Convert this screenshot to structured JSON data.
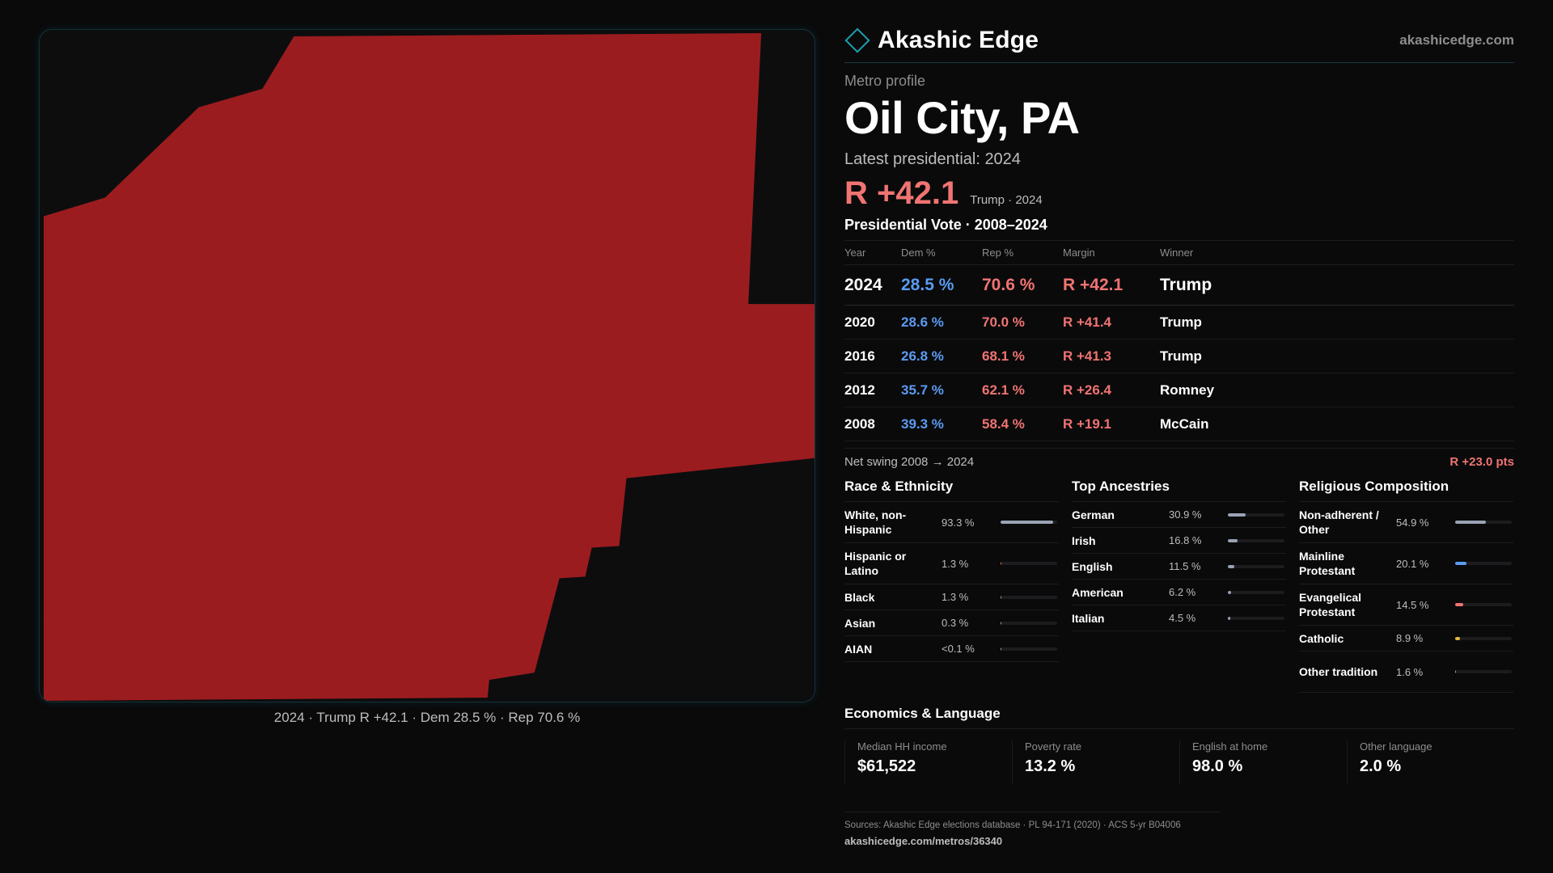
{
  "map": {
    "caption": "2024 · Trump R +42.1 · Dem 28.5 % · Rep 70.6 %",
    "fill_color": "#9b1c1f"
  },
  "brand": {
    "name": "Akashic Edge",
    "domain": "akashicedge.com",
    "logo_icon": "diamond-outline-icon",
    "accent": "#1f9fb0"
  },
  "metro": {
    "kicker": "Metro profile",
    "title": "Oil City, PA",
    "latest_label": "Latest presidential: 2024",
    "headline_margin": "R +42.1",
    "headline_sub": "Trump · 2024"
  },
  "vote": {
    "heading": "Presidential Vote · 2008–2024",
    "columns": [
      "Year",
      "Dem %",
      "Rep %",
      "Margin",
      "Winner"
    ],
    "rows": [
      {
        "year": "2024",
        "dem": "28.5 %",
        "rep": "70.6 %",
        "margin": "R +42.1",
        "winner": "Trump"
      },
      {
        "year": "2020",
        "dem": "28.6 %",
        "rep": "70.0 %",
        "margin": "R +41.4",
        "winner": "Trump"
      },
      {
        "year": "2016",
        "dem": "26.8 %",
        "rep": "68.1 %",
        "margin": "R +41.3",
        "winner": "Trump"
      },
      {
        "year": "2012",
        "dem": "35.7 %",
        "rep": "62.1 %",
        "margin": "R +26.4",
        "winner": "Romney"
      },
      {
        "year": "2008",
        "dem": "39.3 %",
        "rep": "58.4 %",
        "margin": "R +19.1",
        "winner": "McCain"
      }
    ],
    "dem_color": "#5b9bf0",
    "rep_color": "#f07472"
  },
  "swing": {
    "label": "Net swing 2008 → 2024",
    "value": "R +23.0 pts"
  },
  "breakdowns": [
    {
      "title": "Race & Ethnicity",
      "rows": [
        {
          "label": "White, non-Hispanic",
          "pct": "93.3 %",
          "value": 93.3,
          "color": "#9aa3b4"
        },
        {
          "label": "Hispanic or Latino",
          "pct": "1.3 %",
          "value": 1.3,
          "color": "#e0793a"
        },
        {
          "label": "Black",
          "pct": "1.3 %",
          "value": 1.3,
          "color": "#9aa3b4"
        },
        {
          "label": "Asian",
          "pct": "0.3 %",
          "value": 0.3,
          "color": "#9aa3b4"
        },
        {
          "label": "AIAN",
          "pct": "<0.1 %",
          "value": 0.05,
          "color": "#9aa3b4"
        }
      ]
    },
    {
      "title": "Top Ancestries",
      "rows": [
        {
          "label": "German",
          "pct": "30.9 %",
          "value": 30.9,
          "color": "#9aa3b4"
        },
        {
          "label": "Irish",
          "pct": "16.8 %",
          "value": 16.8,
          "color": "#9aa3b4"
        },
        {
          "label": "English",
          "pct": "11.5 %",
          "value": 11.5,
          "color": "#9aa3b4"
        },
        {
          "label": "American",
          "pct": "6.2 %",
          "value": 6.2,
          "color": "#9aa3b4"
        },
        {
          "label": "Italian",
          "pct": "4.5 %",
          "value": 4.5,
          "color": "#9aa3b4"
        }
      ]
    },
    {
      "title": "Religious Composition",
      "rows": [
        {
          "label": "Non-adherent / Other",
          "pct": "54.9 %",
          "value": 54.9,
          "color": "#9aa3b4"
        },
        {
          "label": "Mainline Protestant",
          "pct": "20.1 %",
          "value": 20.1,
          "color": "#5b9bf0"
        },
        {
          "label": "Evangelical Protestant",
          "pct": "14.5 %",
          "value": 14.5,
          "color": "#f07472"
        },
        {
          "label": "Catholic",
          "pct": "8.9 %",
          "value": 8.9,
          "color": "#e8b73a"
        },
        {
          "label": "Other tradition",
          "pct": "1.6 %",
          "value": 1.6,
          "color": "#9aa3b4"
        }
      ]
    }
  ],
  "economics": {
    "heading": "Economics & Language",
    "cells": [
      {
        "label": "Median HH income",
        "value": "$61,522"
      },
      {
        "label": "Poverty rate",
        "value": "13.2 %"
      },
      {
        "label": "English at home",
        "value": "98.0 %"
      },
      {
        "label": "Other language",
        "value": "2.0 %"
      }
    ]
  },
  "sources": {
    "text": "Sources: Akashic Edge elections database · PL 94-171 (2020) · ACS 5-yr B04006",
    "url": "akashicedge.com/metros/36340"
  }
}
